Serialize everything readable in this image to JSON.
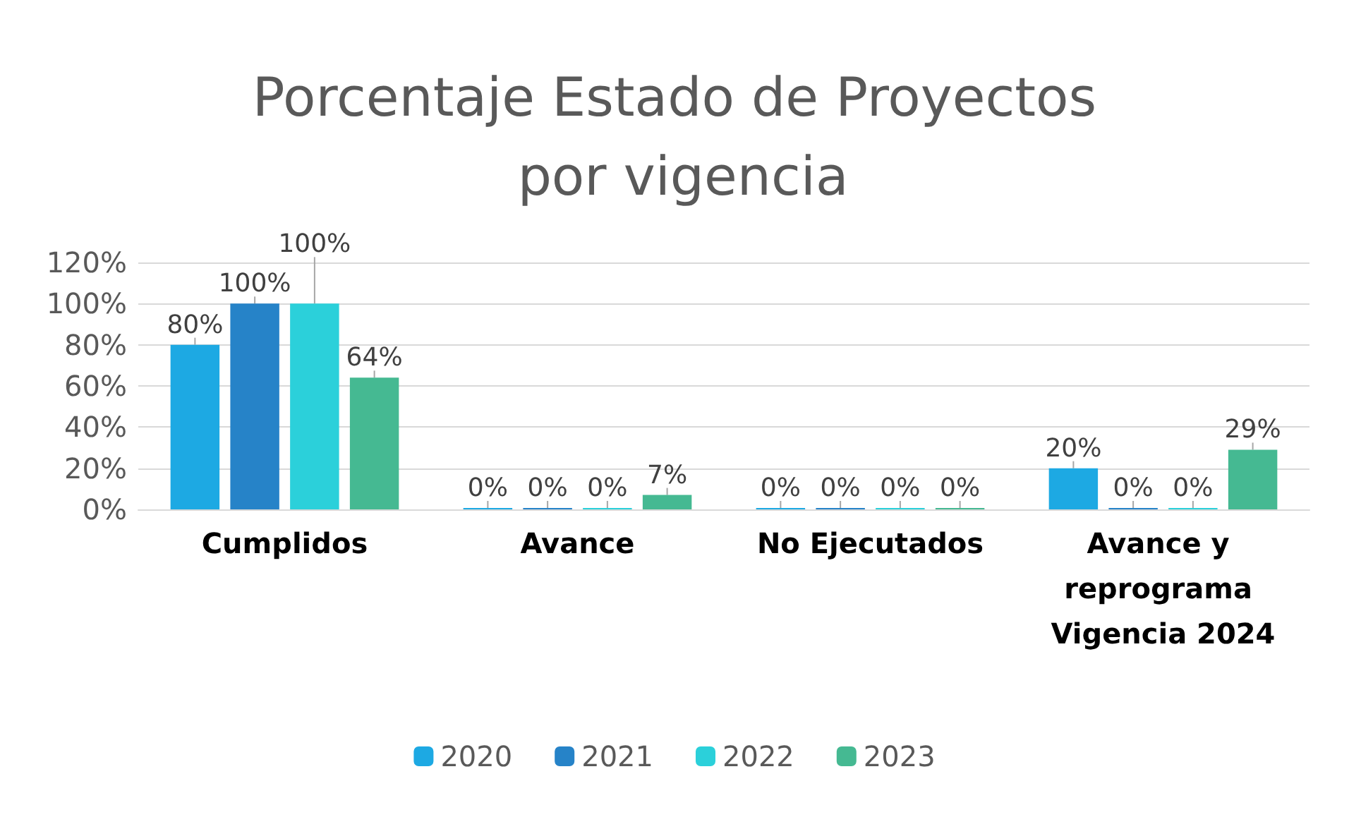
{
  "chart_data": {
    "type": "bar",
    "title": "Porcentaje Estado de Proyectos por vigencia",
    "categories": [
      "Cumplidos",
      "Avance",
      "No Ejecutados",
      "Avance y reprograma Vigencia 2024"
    ],
    "series": [
      {
        "name": "2020",
        "color": "#1da9e3",
        "values": [
          80,
          0,
          0,
          20
        ],
        "value_labels": [
          "80%",
          "0%",
          "0%",
          "20%"
        ]
      },
      {
        "name": "2021",
        "color": "#2683c8",
        "values": [
          100,
          0,
          0,
          0
        ],
        "value_labels": [
          "100%",
          "0%",
          "0%",
          "0%"
        ]
      },
      {
        "name": "2022",
        "color": "#2bd0da",
        "values": [
          100,
          0,
          0,
          0
        ],
        "value_labels": [
          "100%",
          "0%",
          "0%",
          "0%"
        ]
      },
      {
        "name": "2023",
        "color": "#45b992",
        "values": [
          64,
          7,
          0,
          29
        ],
        "value_labels": [
          "64%",
          "7%",
          "0%",
          "29%"
        ]
      }
    ],
    "ylim": [
      0,
      120
    ],
    "yticks": [
      {
        "value": 0,
        "label": "0%"
      },
      {
        "value": 20,
        "label": "20%"
      },
      {
        "value": 40,
        "label": "40%"
      },
      {
        "value": 60,
        "label": "60%"
      },
      {
        "value": 80,
        "label": "80%"
      },
      {
        "value": 100,
        "label": "100%"
      },
      {
        "value": 120,
        "label": "120%"
      }
    ],
    "grid": "y",
    "legend": "bottom"
  }
}
